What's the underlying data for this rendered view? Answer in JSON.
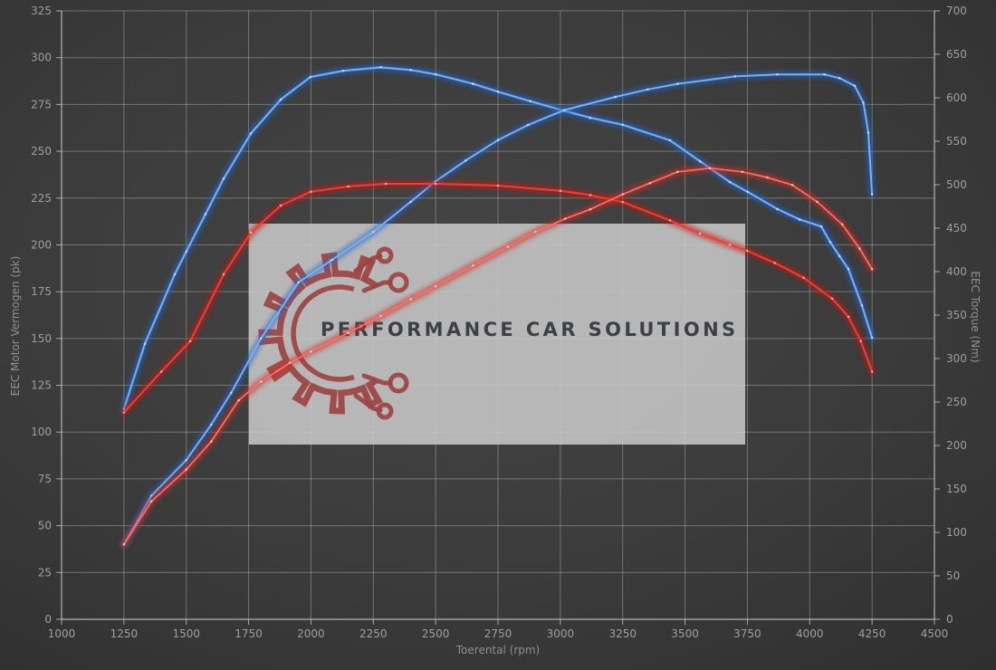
{
  "watermark": {
    "text": "PERFORMANCE CAR SOLUTIONS",
    "logo_color": "#9c4340",
    "box_color": "rgba(203,203,203,0.86)"
  },
  "chart_data": {
    "type": "line",
    "title": "",
    "xlabel": "Toerental (rpm)",
    "ylabel_left": "EEC Motor Vermogen (pk)",
    "ylabel_right": "EEC Torque (Nm)",
    "x_range": [
      1000,
      4500
    ],
    "x_ticks": [
      1000,
      1250,
      1500,
      1750,
      2000,
      2250,
      2500,
      2750,
      3000,
      3250,
      3500,
      3750,
      4000,
      4250,
      4500
    ],
    "y_left_range": [
      0,
      325
    ],
    "y_left_ticks": [
      0,
      25,
      50,
      75,
      100,
      125,
      150,
      175,
      200,
      225,
      250,
      275,
      300,
      325
    ],
    "y_right_range": [
      0,
      700
    ],
    "y_right_ticks": [
      0,
      50,
      100,
      150,
      200,
      250,
      300,
      350,
      400,
      450,
      500,
      550,
      600,
      650,
      700
    ],
    "grid": true,
    "legend": "none",
    "series": [
      {
        "name": "tuned-torque-blue",
        "axis": "right",
        "unit": "Nm",
        "core": "#74acf2",
        "glow": "#1f66d0",
        "core_width": 2.2,
        "points": [
          [
            1250,
            242
          ],
          [
            1334,
            317
          ],
          [
            1454,
            397
          ],
          [
            1500,
            423
          ],
          [
            1577,
            466
          ],
          [
            1650,
            507
          ],
          [
            1759,
            559
          ],
          [
            1879,
            598
          ],
          [
            1998,
            624
          ],
          [
            2130,
            631
          ],
          [
            2280,
            635
          ],
          [
            2400,
            632
          ],
          [
            2500,
            627
          ],
          [
            2650,
            616
          ],
          [
            2750,
            607
          ],
          [
            2880,
            596
          ],
          [
            3016,
            585
          ],
          [
            3120,
            577
          ],
          [
            3250,
            569
          ],
          [
            3440,
            551
          ],
          [
            3560,
            527
          ],
          [
            3680,
            503
          ],
          [
            3750,
            492
          ],
          [
            3870,
            472
          ],
          [
            3959,
            460
          ],
          [
            4046,
            452
          ],
          [
            4082,
            434
          ],
          [
            4119,
            418
          ],
          [
            4155,
            403
          ],
          [
            4209,
            361
          ],
          [
            4250,
            324
          ]
        ]
      },
      {
        "name": "tuned-power-blue",
        "axis": "left",
        "unit": "pk",
        "core": "#78b0f4",
        "glow": "#2263c9",
        "core_width": 2.0,
        "points": [
          [
            1250,
            40
          ],
          [
            1360,
            66
          ],
          [
            1500,
            85
          ],
          [
            1600,
            104
          ],
          [
            1680,
            121
          ],
          [
            1800,
            150
          ],
          [
            1950,
            180
          ],
          [
            2085,
            192
          ],
          [
            2250,
            207
          ],
          [
            2400,
            223
          ],
          [
            2500,
            234
          ],
          [
            2620,
            245
          ],
          [
            2750,
            256
          ],
          [
            2870,
            264
          ],
          [
            3016,
            272
          ],
          [
            3220,
            279
          ],
          [
            3350,
            283
          ],
          [
            3470,
            286
          ],
          [
            3700,
            290
          ],
          [
            3870,
            291
          ],
          [
            4060,
            291
          ],
          [
            4120,
            289
          ],
          [
            4180,
            285
          ],
          [
            4215,
            276
          ],
          [
            4235,
            260
          ],
          [
            4250,
            227
          ]
        ]
      },
      {
        "name": "original-torque-red",
        "axis": "right",
        "unit": "Nm",
        "core": "#f23d34",
        "glow": "#c9140e",
        "core_width": 2.0,
        "points": [
          [
            1250,
            238
          ],
          [
            1400,
            285
          ],
          [
            1516,
            320
          ],
          [
            1650,
            397
          ],
          [
            1759,
            445
          ],
          [
            1879,
            476
          ],
          [
            2000,
            492
          ],
          [
            2150,
            498
          ],
          [
            2300,
            501
          ],
          [
            2500,
            501
          ],
          [
            2750,
            499
          ],
          [
            3000,
            493
          ],
          [
            3120,
            488
          ],
          [
            3250,
            480
          ],
          [
            3440,
            459
          ],
          [
            3560,
            444
          ],
          [
            3680,
            431
          ],
          [
            3750,
            424
          ],
          [
            3860,
            410
          ],
          [
            3975,
            393
          ],
          [
            4090,
            369
          ],
          [
            4155,
            348
          ],
          [
            4205,
            320
          ],
          [
            4250,
            285
          ]
        ]
      },
      {
        "name": "original-power-red",
        "axis": "left",
        "unit": "pk",
        "core": "#ff6f66",
        "glow": "#d02a22",
        "core_width": 1.7,
        "points": [
          [
            1250,
            40
          ],
          [
            1360,
            63
          ],
          [
            1500,
            80
          ],
          [
            1600,
            95
          ],
          [
            1710,
            117
          ],
          [
            1800,
            127
          ],
          [
            1915,
            137
          ],
          [
            2000,
            143
          ],
          [
            2150,
            153
          ],
          [
            2280,
            162
          ],
          [
            2400,
            171
          ],
          [
            2500,
            178
          ],
          [
            2650,
            189
          ],
          [
            2790,
            199
          ],
          [
            2900,
            207
          ],
          [
            3020,
            214
          ],
          [
            3120,
            219
          ],
          [
            3250,
            227
          ],
          [
            3360,
            233
          ],
          [
            3470,
            239
          ],
          [
            3600,
            241
          ],
          [
            3730,
            239
          ],
          [
            3830,
            236
          ],
          [
            3930,
            232
          ],
          [
            4030,
            223
          ],
          [
            4130,
            211
          ],
          [
            4200,
            198
          ],
          [
            4250,
            187
          ]
        ]
      }
    ],
    "style": {
      "grid_color": "rgba(195,195,195,0.42)",
      "axis_color": "rgba(205,205,205,0.75)",
      "tick_label_color": "#9e9e9e",
      "tick_font_size": 12
    }
  }
}
